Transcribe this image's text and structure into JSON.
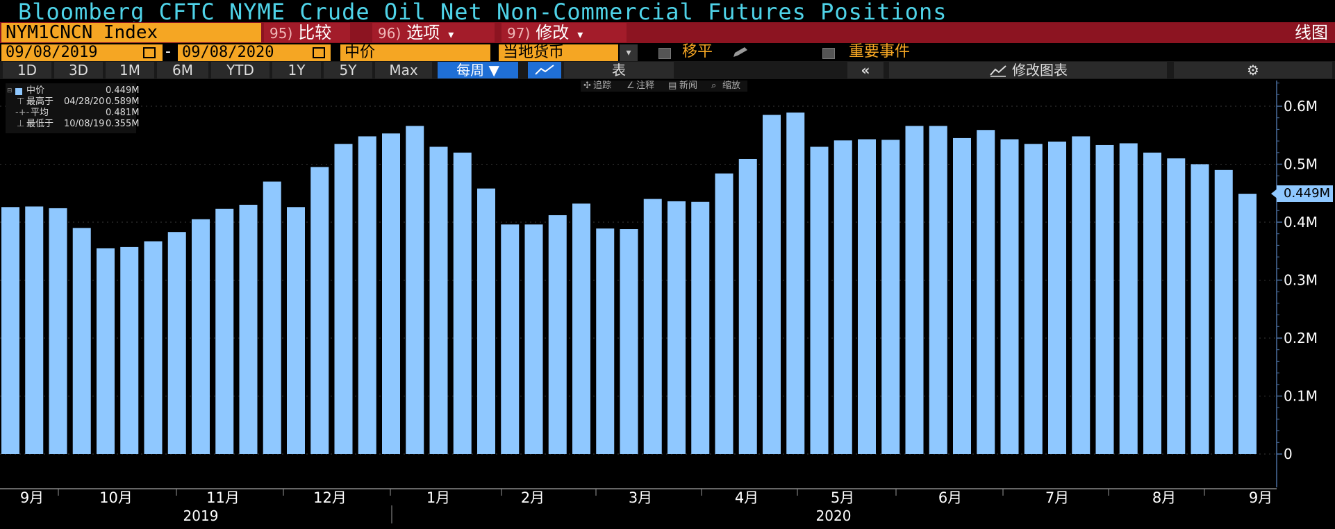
{
  "header": {
    "title": "Bloomberg CFTC NYME Crude Oil Net Non-Commercial Futures Positions"
  },
  "toolbar": {
    "ticker": "NYM1CNCN Index",
    "menus": [
      {
        "num": "95)",
        "label": "比较",
        "caret": ""
      },
      {
        "num": "96)",
        "label": "选项",
        "caret": "▾"
      },
      {
        "num": "97)",
        "label": "修改",
        "caret": "▾"
      }
    ],
    "chart_type": "线图"
  },
  "range": {
    "start_date": "09/08/2019",
    "dash": "-",
    "end_date": "09/08/2020",
    "price_field": "中价",
    "currency": "当地货币",
    "moving_avg_label": "移平",
    "events_label": "重要事件"
  },
  "periods": {
    "buttons": [
      "1D",
      "3D",
      "1M",
      "6M",
      "YTD",
      "1Y",
      "5Y",
      "Max"
    ],
    "frequency": "每周",
    "table_label": "表",
    "edit_chart_label": "修改图表"
  },
  "legend": {
    "series_label": "中价",
    "series_value": "0.449M",
    "high_label": "最高于",
    "high_date": "04/28/20",
    "high_value": "0.589M",
    "avg_label": "平均",
    "avg_value": "0.481M",
    "low_label": "最低于",
    "low_date": "10/08/19",
    "low_value": "0.355M"
  },
  "chart_tools": [
    "追踪",
    "注释",
    "新闻",
    "缩放"
  ],
  "last_value_label": "0.449M",
  "colors": {
    "bar": "#8fc8ff",
    "title": "#4fd3e8",
    "accent_orange": "#f5a623",
    "menu_red": "#8c1421"
  },
  "chart_data": {
    "type": "bar",
    "title": "Bloomberg CFTC NYME Crude Oil Net Non-Commercial Futures Positions",
    "xlabel": "",
    "ylabel": "",
    "ylim": [
      -0.06,
      0.65
    ],
    "y_ticks": [
      0,
      0.1,
      0.2,
      0.3,
      0.4,
      0.5,
      0.6
    ],
    "y_tick_labels": [
      "0",
      "0.1M",
      "0.2M",
      "0.3M",
      "0.4M",
      "0.5M",
      "0.6M"
    ],
    "grid": true,
    "x_month_labels": [
      "9月",
      "10月",
      "11月",
      "12月",
      "1月",
      "2月",
      "3月",
      "4月",
      "5月",
      "6月",
      "7月",
      "8月",
      "9月"
    ],
    "x_year_labels": [
      "2019",
      "2020"
    ],
    "values": [
      0.426,
      0.427,
      0.424,
      0.39,
      0.355,
      0.357,
      0.367,
      0.383,
      0.405,
      0.423,
      0.43,
      0.47,
      0.426,
      0.495,
      0.535,
      0.548,
      0.553,
      0.566,
      0.53,
      0.52,
      0.458,
      0.396,
      0.396,
      0.412,
      0.432,
      0.389,
      0.388,
      0.44,
      0.436,
      0.435,
      0.484,
      0.509,
      0.585,
      0.589,
      0.53,
      0.541,
      0.543,
      0.542,
      0.566,
      0.566,
      0.545,
      0.559,
      0.543,
      0.535,
      0.539,
      0.548,
      0.533,
      0.536,
      0.52,
      0.51,
      0.5,
      0.49,
      0.449
    ]
  }
}
